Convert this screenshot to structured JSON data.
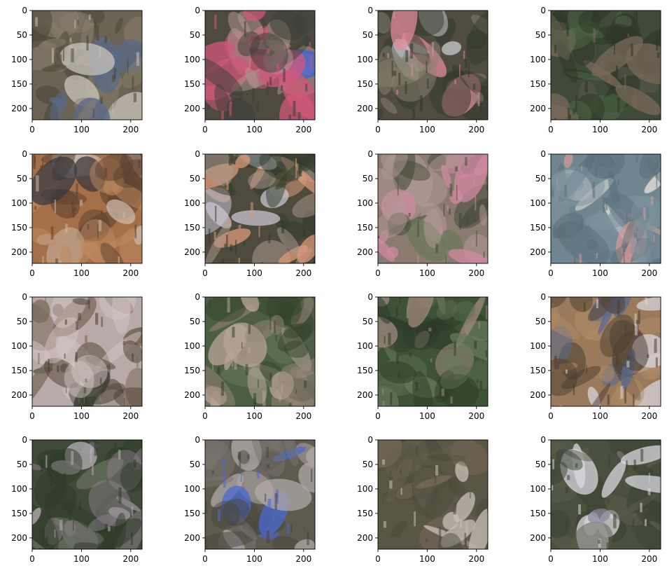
{
  "figure": {
    "rows": 4,
    "cols": 4,
    "background": "#ffffff"
  },
  "chart_data": [
    {
      "type": "image",
      "panel": 1,
      "xlim": [
        0,
        223
      ],
      "ylim": [
        223,
        0
      ],
      "xticks": [
        0,
        100,
        200
      ],
      "yticks": [
        0,
        50,
        100,
        150,
        200
      ],
      "colors": {
        "base": "#6b6353",
        "shade1": "#8a7f6e",
        "shade2": "#4a4538",
        "accent": "#c9c4bb",
        "accent2": "#5a6a8a"
      }
    },
    {
      "type": "image",
      "panel": 2,
      "xlim": [
        0,
        223
      ],
      "ylim": [
        223,
        0
      ],
      "xticks": [
        0,
        100,
        200
      ],
      "yticks": [
        0,
        50,
        100,
        150,
        200
      ],
      "colors": {
        "base": "#4f4a40",
        "shade1": "#b59a92",
        "shade2": "#3b3f36",
        "accent": "#d0587a",
        "accent2": "#3f5fd0"
      }
    },
    {
      "type": "image",
      "panel": 3,
      "xlim": [
        0,
        223
      ],
      "ylim": [
        223,
        0
      ],
      "xticks": [
        0,
        100,
        200
      ],
      "yticks": [
        0,
        50,
        100,
        150,
        200
      ],
      "colors": {
        "base": "#514c42",
        "shade1": "#8a8070",
        "shade2": "#2f3a2a",
        "accent": "#e08a9a",
        "accent2": "#c8c8d0"
      }
    },
    {
      "type": "image",
      "panel": 4,
      "xlim": [
        0,
        223
      ],
      "ylim": [
        223,
        0
      ],
      "xticks": [
        0,
        100,
        200
      ],
      "yticks": [
        0,
        50,
        100,
        150,
        200
      ],
      "colors": {
        "base": "#3f4a38",
        "shade1": "#4d6a46",
        "shade2": "#2c3526",
        "accent": "#7a6a5a",
        "accent2": "#5a5a4a"
      }
    },
    {
      "type": "image",
      "panel": 5,
      "xlim": [
        0,
        223
      ],
      "ylim": [
        223,
        0
      ],
      "xticks": [
        0,
        100,
        200
      ],
      "yticks": [
        0,
        50,
        100,
        150,
        200
      ],
      "colors": {
        "base": "#a56f48",
        "shade1": "#bf8a5f",
        "shade2": "#5a4030",
        "accent": "#cbb8a8",
        "accent2": "#3a3a40"
      }
    },
    {
      "type": "image",
      "panel": 6,
      "xlim": [
        0,
        223
      ],
      "ylim": [
        223,
        0
      ],
      "xticks": [
        0,
        100,
        200
      ],
      "yticks": [
        0,
        50,
        100,
        150,
        200
      ],
      "colors": {
        "base": "#4e4a3e",
        "shade1": "#a99a8e",
        "shade2": "#2e3b2b",
        "accent": "#d99a7a",
        "accent2": "#c9c4d0"
      }
    },
    {
      "type": "image",
      "panel": 7,
      "xlim": [
        0,
        223
      ],
      "ylim": [
        223,
        0
      ],
      "xticks": [
        0,
        100,
        200
      ],
      "yticks": [
        0,
        50,
        100,
        150,
        200
      ],
      "colors": {
        "base": "#8a7a70",
        "shade1": "#b29a96",
        "shade2": "#3f4836",
        "accent": "#d08aa0",
        "accent2": "#6a7a5a"
      }
    },
    {
      "type": "image",
      "panel": 8,
      "xlim": [
        0,
        223
      ],
      "ylim": [
        223,
        0
      ],
      "xticks": [
        0,
        100,
        200
      ],
      "yticks": [
        0,
        50,
        100,
        150,
        200
      ],
      "colors": {
        "base": "#6f8590",
        "shade1": "#7e949e",
        "shade2": "#5a6e78",
        "accent": "#d39a9a",
        "accent2": "#e8e4e0"
      }
    },
    {
      "type": "image",
      "panel": 9,
      "xlim": [
        0,
        223
      ],
      "ylim": [
        223,
        0
      ],
      "xticks": [
        0,
        100,
        200
      ],
      "yticks": [
        0,
        50,
        100,
        150,
        200
      ],
      "colors": {
        "base": "#b8aaa8",
        "shade1": "#d4c6c4",
        "shade2": "#4a4030",
        "accent": "#7a6a5a",
        "accent2": "#2e3a2a"
      }
    },
    {
      "type": "image",
      "panel": 10,
      "xlim": [
        0,
        223
      ],
      "ylim": [
        223,
        0
      ],
      "xticks": [
        0,
        100,
        200
      ],
      "yticks": [
        0,
        50,
        100,
        150,
        200
      ],
      "colors": {
        "base": "#4c5e44",
        "shade1": "#9a857c",
        "shade2": "#33432e",
        "accent": "#b8a49a",
        "accent2": "#6a7a5a"
      }
    },
    {
      "type": "image",
      "panel": 11,
      "xlim": [
        0,
        223
      ],
      "ylim": [
        223,
        0
      ],
      "xticks": [
        0,
        100,
        200
      ],
      "yticks": [
        0,
        50,
        100,
        150,
        200
      ],
      "colors": {
        "base": "#3e5238",
        "shade1": "#5a6e4e",
        "shade2": "#2b3a28",
        "accent": "#a08a80",
        "accent2": "#6a7a5a"
      }
    },
    {
      "type": "image",
      "panel": 12,
      "xlim": [
        0,
        223
      ],
      "ylim": [
        223,
        0
      ],
      "xticks": [
        0,
        100,
        200
      ],
      "yticks": [
        0,
        50,
        100,
        150,
        200
      ],
      "colors": {
        "base": "#9a7a5a",
        "shade1": "#b08c68",
        "shade2": "#4a3e30",
        "accent": "#d8d4dc",
        "accent2": "#5a6a90"
      }
    },
    {
      "type": "image",
      "panel": 13,
      "xlim": [
        0,
        223
      ],
      "ylim": [
        223,
        0
      ],
      "xticks": [
        0,
        100,
        200
      ],
      "yticks": [
        0,
        50,
        100,
        150,
        200
      ],
      "colors": {
        "base": "#3f4a38",
        "shade1": "#8a8088",
        "shade2": "#2c3a28",
        "accent": "#b8b0b8",
        "accent2": "#6a7060"
      }
    },
    {
      "type": "image",
      "panel": 14,
      "xlim": [
        0,
        223
      ],
      "ylim": [
        223,
        0
      ],
      "xticks": [
        0,
        100,
        200
      ],
      "yticks": [
        0,
        50,
        100,
        150,
        200
      ],
      "colors": {
        "base": "#5e5a4e",
        "shade1": "#7a7470",
        "shade2": "#48463c",
        "accent": "#4a6ad0",
        "accent2": "#b0aaa8"
      }
    },
    {
      "type": "image",
      "panel": 15,
      "xlim": [
        0,
        223
      ],
      "ylim": [
        223,
        0
      ],
      "xticks": [
        0,
        100,
        200
      ],
      "yticks": [
        0,
        50,
        100,
        150,
        200
      ],
      "colors": {
        "base": "#5a5646",
        "shade1": "#666050",
        "shade2": "#4a4a3c",
        "accent": "#c8c0b8",
        "accent2": "#7a6a5a"
      }
    },
    {
      "type": "image",
      "panel": 16,
      "xlim": [
        0,
        223
      ],
      "ylim": [
        223,
        0
      ],
      "xticks": [
        0,
        100,
        200
      ],
      "yticks": [
        0,
        50,
        100,
        150,
        200
      ],
      "colors": {
        "base": "#4a5040",
        "shade1": "#5a5e4c",
        "shade2": "#3a4232",
        "accent": "#d8d8e0",
        "accent2": "#8a8a9a"
      }
    }
  ]
}
